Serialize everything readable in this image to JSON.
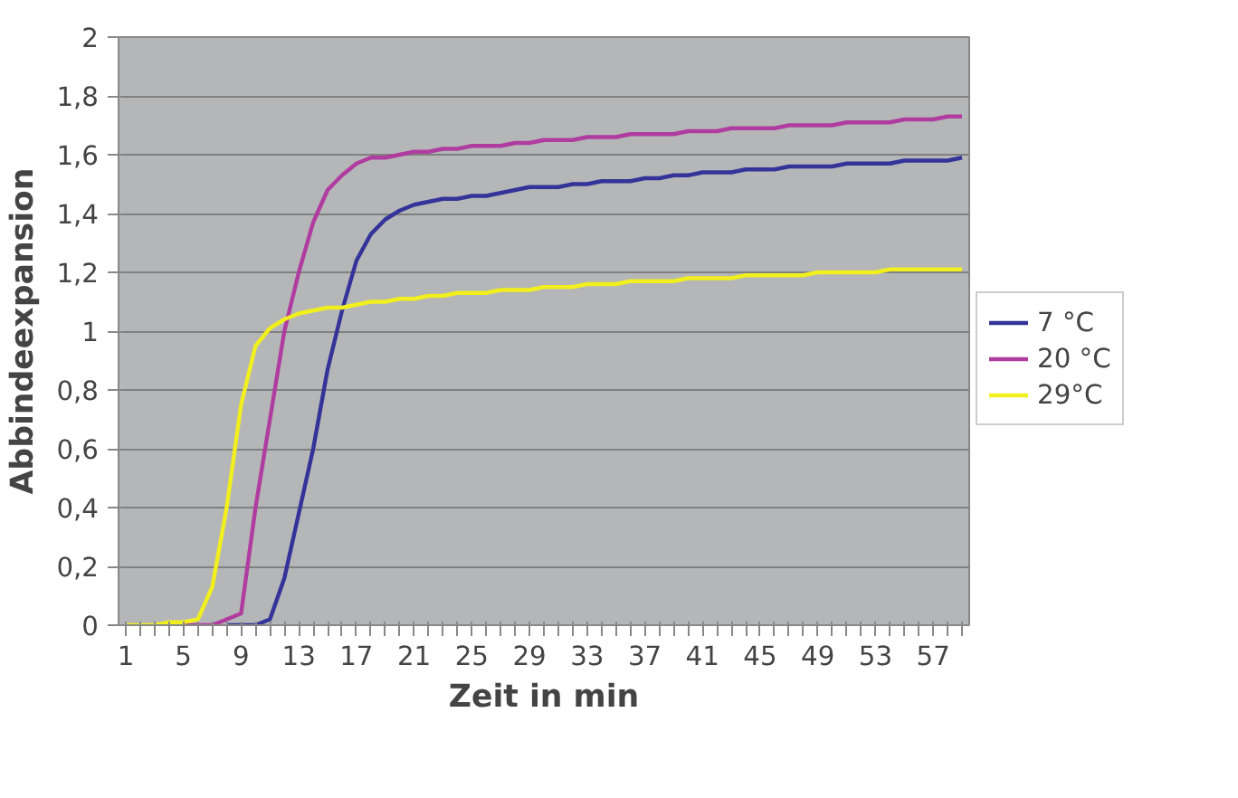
{
  "chart_data": {
    "type": "line",
    "xlabel": "Zeit in min",
    "ylabel": "Abbindeexpansion",
    "categories": [
      "1",
      null,
      null,
      null,
      "5",
      null,
      null,
      null,
      "9",
      null,
      null,
      null,
      "13",
      null,
      null,
      null,
      "17",
      null,
      null,
      null,
      "21",
      null,
      null,
      null,
      "25",
      null,
      null,
      null,
      "29",
      null,
      null,
      null,
      "33",
      null,
      null,
      null,
      "37",
      null,
      null,
      null,
      "41",
      null,
      null,
      null,
      "45",
      null,
      null,
      null,
      "49",
      null,
      null,
      null,
      "53",
      null,
      null,
      null,
      "57",
      null,
      null
    ],
    "ylim": [
      0,
      2
    ],
    "yticks": [
      0,
      {
        "value": 0.2,
        "label": "0,2"
      },
      {
        "value": 0.4,
        "label": "0,4"
      },
      {
        "value": 0.6,
        "label": "0,6"
      },
      {
        "value": 0.8,
        "label": "0,8"
      },
      1,
      {
        "value": 1.2,
        "label": "1,2"
      },
      {
        "value": 1.4,
        "label": "1,4"
      },
      {
        "value": 1.6,
        "label": "1,6"
      },
      {
        "value": 1.8,
        "label": "1,8"
      },
      2
    ],
    "grid": "y",
    "legend": "right",
    "marker": "none",
    "line_style": "solid",
    "series": [
      {
        "name": "7 °C",
        "color": "#333399",
        "values": [
          null,
          null,
          null,
          null,
          null,
          null,
          null,
          0,
          0,
          0,
          0.02,
          0.16,
          0.38,
          0.6,
          0.87,
          1.07,
          1.24,
          1.33,
          1.38,
          1.41,
          1.43,
          1.44,
          1.45,
          1.45,
          1.46,
          1.46,
          1.47,
          1.48,
          1.49,
          1.49,
          1.49,
          1.5,
          1.5,
          1.51,
          1.51,
          1.51,
          1.52,
          1.52,
          1.53,
          1.53,
          1.54,
          1.54,
          1.54,
          1.55,
          1.55,
          1.55,
          1.56,
          1.56,
          1.56,
          1.56,
          1.57,
          1.57,
          1.57,
          1.57,
          1.58,
          1.58,
          1.58,
          1.58,
          1.59
        ]
      },
      {
        "name": "20 °C",
        "color": "#b03ca0",
        "values": [
          null,
          null,
          null,
          0,
          0,
          0,
          0,
          0.02,
          0.04,
          0.4,
          0.7,
          1.0,
          1.2,
          1.37,
          1.48,
          1.53,
          1.57,
          1.59,
          1.59,
          1.6,
          1.61,
          1.61,
          1.62,
          1.62,
          1.63,
          1.63,
          1.63,
          1.64,
          1.64,
          1.65,
          1.65,
          1.65,
          1.66,
          1.66,
          1.66,
          1.67,
          1.67,
          1.67,
          1.67,
          1.68,
          1.68,
          1.68,
          1.69,
          1.69,
          1.69,
          1.69,
          1.7,
          1.7,
          1.7,
          1.7,
          1.71,
          1.71,
          1.71,
          1.71,
          1.72,
          1.72,
          1.72,
          1.73,
          1.73
        ]
      },
      {
        "name": "29°C",
        "color": "#f2ef1e",
        "values": [
          0,
          0,
          0,
          0.01,
          0.01,
          0.02,
          0.13,
          0.4,
          0.75,
          0.95,
          1.01,
          1.04,
          1.06,
          1.07,
          1.08,
          1.08,
          1.09,
          1.1,
          1.1,
          1.11,
          1.11,
          1.12,
          1.12,
          1.13,
          1.13,
          1.13,
          1.14,
          1.14,
          1.14,
          1.15,
          1.15,
          1.15,
          1.16,
          1.16,
          1.16,
          1.17,
          1.17,
          1.17,
          1.17,
          1.18,
          1.18,
          1.18,
          1.18,
          1.19,
          1.19,
          1.19,
          1.19,
          1.19,
          1.2,
          1.2,
          1.2,
          1.2,
          1.2,
          1.21,
          1.21,
          1.21,
          1.21,
          1.21,
          1.21
        ]
      }
    ]
  }
}
